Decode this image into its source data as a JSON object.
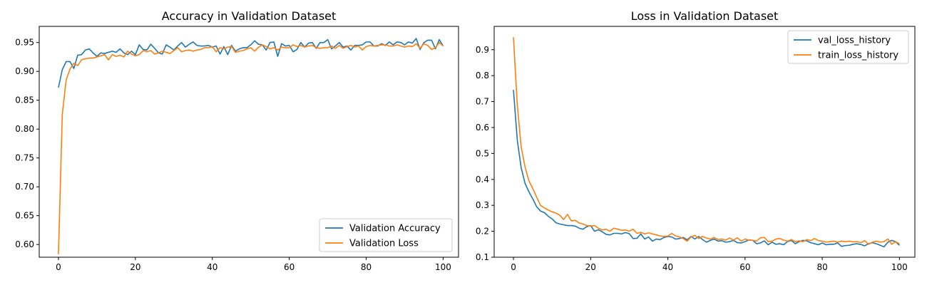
{
  "chart_data": [
    {
      "type": "line",
      "title": "Accuracy in Validation Dataset",
      "xlabel": "",
      "ylabel": "",
      "xlim": [
        -5,
        104
      ],
      "ylim": [
        0.578,
        0.978
      ],
      "xticks": [
        0,
        20,
        40,
        60,
        80,
        100
      ],
      "yticks": [
        0.6,
        0.65,
        0.7,
        0.75,
        0.8,
        0.85,
        0.9,
        0.95
      ],
      "ytick_decimals": 2,
      "grid": false,
      "legend_position": "lower-right",
      "series": [
        {
          "name": "Validation Accuracy",
          "color": "#1f77b4",
          "values": [
            0.872,
            0.903,
            0.917,
            0.917,
            0.905,
            0.928,
            0.929,
            0.937,
            0.939,
            0.932,
            0.926,
            0.932,
            0.931,
            0.933,
            0.935,
            0.933,
            0.939,
            0.932,
            0.929,
            0.935,
            0.929,
            0.946,
            0.938,
            0.937,
            0.947,
            0.94,
            0.932,
            0.93,
            0.946,
            0.942,
            0.937,
            0.944,
            0.95,
            0.942,
            0.947,
            0.951,
            0.945,
            0.944,
            0.944,
            0.945,
            0.942,
            0.944,
            0.93,
            0.943,
            0.929,
            0.945,
            0.935,
            0.939,
            0.941,
            0.941,
            0.946,
            0.953,
            0.947,
            0.946,
            0.937,
            0.95,
            0.951,
            0.926,
            0.948,
            0.944,
            0.945,
            0.934,
            0.938,
            0.95,
            0.942,
            0.949,
            0.95,
            0.94,
            0.95,
            0.95,
            0.955,
            0.939,
            0.944,
            0.95,
            0.942,
            0.944,
            0.937,
            0.945,
            0.945,
            0.946,
            0.951,
            0.951,
            0.944,
            0.944,
            0.948,
            0.945,
            0.951,
            0.946,
            0.951,
            0.95,
            0.946,
            0.951,
            0.949,
            0.957,
            0.938,
            0.95,
            0.954,
            0.954,
            0.939,
            0.955,
            0.944
          ]
        },
        {
          "name": "Validation Loss",
          "color": "#ff7f0e",
          "values": [
            0.583,
            0.826,
            0.885,
            0.904,
            0.914,
            0.91,
            0.92,
            0.922,
            0.923,
            0.923,
            0.925,
            0.927,
            0.929,
            0.92,
            0.929,
            0.926,
            0.928,
            0.925,
            0.935,
            0.93,
            0.927,
            0.929,
            0.936,
            0.934,
            0.936,
            0.93,
            0.932,
            0.935,
            0.933,
            0.931,
            0.936,
            0.941,
            0.934,
            0.936,
            0.937,
            0.935,
            0.937,
            0.938,
            0.941,
            0.941,
            0.943,
            0.934,
            0.941,
            0.939,
            0.942,
            0.943,
            0.933,
            0.935,
            0.936,
            0.939,
            0.941,
            0.935,
            0.942,
            0.946,
            0.943,
            0.939,
            0.941,
            0.937,
            0.942,
            0.941,
            0.941,
            0.946,
            0.943,
            0.945,
            0.942,
            0.944,
            0.945,
            0.941,
            0.94,
            0.941,
            0.941,
            0.944,
            0.94,
            0.945,
            0.94,
            0.943,
            0.945,
            0.942,
            0.944,
            0.937,
            0.943,
            0.945,
            0.944,
            0.945,
            0.946,
            0.946,
            0.944,
            0.944,
            0.946,
            0.944,
            0.942,
            0.944,
            0.943,
            0.948,
            0.94,
            0.948,
            0.945,
            0.938,
            0.941,
            0.95,
            0.944
          ]
        }
      ]
    },
    {
      "type": "line",
      "title": "Loss in Validation Dataset",
      "xlabel": "",
      "ylabel": "",
      "xlim": [
        -5,
        104
      ],
      "ylim": [
        0.1,
        0.99
      ],
      "xticks": [
        0,
        20,
        40,
        60,
        80,
        100
      ],
      "yticks": [
        0.1,
        0.2,
        0.3,
        0.4,
        0.5,
        0.6,
        0.7,
        0.8,
        0.9
      ],
      "ytick_decimals": 1,
      "grid": false,
      "legend_position": "upper-right",
      "series": [
        {
          "name": "val_loss_history",
          "color": "#1f77b4",
          "values": [
            0.745,
            0.55,
            0.445,
            0.385,
            0.352,
            0.325,
            0.295,
            0.278,
            0.272,
            0.258,
            0.248,
            0.233,
            0.228,
            0.225,
            0.222,
            0.222,
            0.22,
            0.212,
            0.208,
            0.218,
            0.222,
            0.2,
            0.206,
            0.198,
            0.188,
            0.186,
            0.192,
            0.192,
            0.19,
            0.195,
            0.191,
            0.172,
            0.173,
            0.19,
            0.17,
            0.178,
            0.162,
            0.17,
            0.168,
            0.176,
            0.18,
            0.178,
            0.17,
            0.172,
            0.176,
            0.167,
            0.18,
            0.17,
            0.18,
            0.168,
            0.158,
            0.165,
            0.17,
            0.162,
            0.164,
            0.158,
            0.16,
            0.165,
            0.156,
            0.155,
            0.16,
            0.167,
            0.165,
            0.152,
            0.155,
            0.163,
            0.148,
            0.158,
            0.15,
            0.152,
            0.148,
            0.16,
            0.165,
            0.152,
            0.16,
            0.165,
            0.163,
            0.156,
            0.152,
            0.148,
            0.155,
            0.148,
            0.15,
            0.15,
            0.155,
            0.142,
            0.145,
            0.146,
            0.15,
            0.152,
            0.149,
            0.144,
            0.152,
            0.156,
            0.152,
            0.146,
            0.14,
            0.158,
            0.165,
            0.16,
            0.146
          ]
        },
        {
          "name": "train_loss_history",
          "color": "#ff7f0e",
          "values": [
            0.948,
            0.685,
            0.525,
            0.448,
            0.395,
            0.365,
            0.332,
            0.3,
            0.29,
            0.282,
            0.275,
            0.27,
            0.262,
            0.245,
            0.265,
            0.24,
            0.242,
            0.232,
            0.228,
            0.222,
            0.22,
            0.222,
            0.212,
            0.205,
            0.208,
            0.2,
            0.212,
            0.208,
            0.204,
            0.205,
            0.2,
            0.208,
            0.192,
            0.196,
            0.19,
            0.194,
            0.19,
            0.186,
            0.182,
            0.18,
            0.182,
            0.192,
            0.182,
            0.178,
            0.172,
            0.162,
            0.178,
            0.184,
            0.172,
            0.18,
            0.174,
            0.17,
            0.176,
            0.168,
            0.17,
            0.166,
            0.174,
            0.166,
            0.175,
            0.162,
            0.17,
            0.166,
            0.165,
            0.162,
            0.175,
            0.176,
            0.16,
            0.162,
            0.17,
            0.172,
            0.166,
            0.162,
            0.168,
            0.16,
            0.163,
            0.16,
            0.168,
            0.164,
            0.172,
            0.164,
            0.162,
            0.158,
            0.16,
            0.162,
            0.158,
            0.162,
            0.16,
            0.162,
            0.159,
            0.16,
            0.156,
            0.164,
            0.15,
            0.158,
            0.162,
            0.158,
            0.16,
            0.17,
            0.15,
            0.16,
            0.152
          ]
        }
      ]
    }
  ]
}
